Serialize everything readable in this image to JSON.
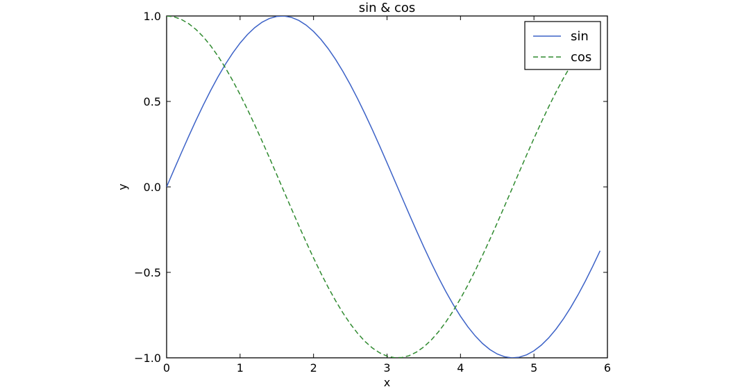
{
  "chart_data": {
    "type": "line",
    "title": "sin & cos",
    "xlabel": "x",
    "ylabel": "y",
    "xlim": [
      0,
      6
    ],
    "ylim": [
      -1.0,
      1.0
    ],
    "xticks": [
      0,
      1,
      2,
      3,
      4,
      5,
      6
    ],
    "xtick_labels": [
      "0",
      "1",
      "2",
      "3",
      "4",
      "5",
      "6"
    ],
    "yticks": [
      1.0,
      0.5,
      0.0,
      -0.5,
      -1.0
    ],
    "ytick_labels": [
      "1.0",
      "0.5",
      "0.0",
      "−0.5",
      "−1.0"
    ],
    "grid": false,
    "legend_position": "top-right",
    "x": [
      0.0,
      0.1,
      0.2,
      0.3,
      0.4,
      0.5,
      0.6,
      0.7,
      0.8,
      0.9,
      1.0,
      1.1,
      1.2,
      1.3,
      1.4,
      1.5,
      1.6,
      1.7,
      1.8,
      1.9,
      2.0,
      2.1,
      2.2,
      2.3,
      2.4,
      2.5,
      2.6,
      2.7,
      2.8,
      2.9,
      3.0,
      3.1,
      3.2,
      3.3,
      3.4,
      3.5,
      3.6,
      3.7,
      3.8,
      3.9,
      4.0,
      4.1,
      4.2,
      4.3,
      4.4,
      4.5,
      4.6,
      4.7,
      4.8,
      4.9,
      5.0,
      5.1,
      5.2,
      5.3,
      5.4,
      5.5,
      5.6,
      5.7,
      5.8,
      5.9
    ],
    "series": [
      {
        "name": "sin",
        "color": "#3c62c7",
        "style": "solid",
        "values": [
          0.0,
          0.0998,
          0.1987,
          0.2955,
          0.3894,
          0.4794,
          0.5646,
          0.6442,
          0.7174,
          0.7833,
          0.8415,
          0.8912,
          0.932,
          0.9636,
          0.9854,
          0.9975,
          0.9996,
          0.9917,
          0.9738,
          0.9463,
          0.9093,
          0.8632,
          0.8085,
          0.7457,
          0.6755,
          0.5985,
          0.5155,
          0.4274,
          0.335,
          0.2392,
          0.1411,
          0.0416,
          -0.0584,
          -0.1577,
          -0.2555,
          -0.3508,
          -0.4425,
          -0.5298,
          -0.6119,
          -0.6878,
          -0.7568,
          -0.8183,
          -0.8716,
          -0.9162,
          -0.9516,
          -0.9775,
          -0.9937,
          -0.9999,
          -0.9962,
          -0.9825,
          -0.9589,
          -0.9258,
          -0.8835,
          -0.8323,
          -0.7728,
          -0.7055,
          -0.6313,
          -0.5507,
          -0.4646,
          -0.3739
        ]
      },
      {
        "name": "cos",
        "color": "#2f8a2f",
        "style": "dashed",
        "values": [
          1.0,
          0.995,
          0.9801,
          0.9553,
          0.9211,
          0.8776,
          0.8253,
          0.7648,
          0.6967,
          0.6216,
          0.5403,
          0.4536,
          0.3624,
          0.2675,
          0.17,
          0.0707,
          -0.0292,
          -0.1288,
          -0.2272,
          -0.3233,
          -0.4161,
          -0.5048,
          -0.5885,
          -0.6663,
          -0.7374,
          -0.8011,
          -0.8569,
          -0.9041,
          -0.9422,
          -0.971,
          -0.99,
          -0.9991,
          -0.9983,
          -0.9875,
          -0.9668,
          -0.9365,
          -0.8968,
          -0.8481,
          -0.791,
          -0.7259,
          -0.6536,
          -0.5748,
          -0.4903,
          -0.4008,
          -0.3073,
          -0.2108,
          -0.1122,
          -0.0124,
          0.0875,
          0.1865,
          0.2837,
          0.378,
          0.4685,
          0.5544,
          0.6347,
          0.7087,
          0.7756,
          0.8347,
          0.8855,
          0.9275
        ]
      }
    ]
  }
}
